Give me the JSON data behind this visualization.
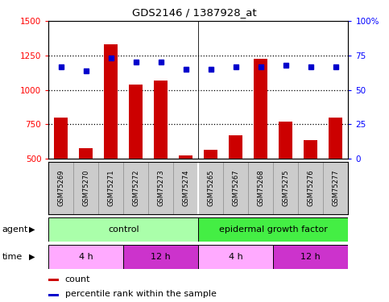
{
  "title": "GDS2146 / 1387928_at",
  "samples": [
    "GSM75269",
    "GSM75270",
    "GSM75271",
    "GSM75272",
    "GSM75273",
    "GSM75274",
    "GSM75265",
    "GSM75267",
    "GSM75268",
    "GSM75275",
    "GSM75276",
    "GSM75277"
  ],
  "counts": [
    800,
    575,
    1330,
    1040,
    1065,
    520,
    565,
    670,
    1225,
    770,
    635,
    800
  ],
  "percentiles": [
    67,
    64,
    73,
    70,
    70,
    65,
    65,
    67,
    67,
    68,
    67,
    67
  ],
  "ylim_left": [
    500,
    1500
  ],
  "ylim_right": [
    0,
    100
  ],
  "yticks_left": [
    500,
    750,
    1000,
    1250,
    1500
  ],
  "yticks_right": [
    0,
    25,
    50,
    75,
    100
  ],
  "bar_color": "#cc0000",
  "dot_color": "#0000cc",
  "groups": [
    {
      "label": "control",
      "start": 0,
      "end": 6,
      "color": "#aaffaa"
    },
    {
      "label": "epidermal growth factor",
      "start": 6,
      "end": 12,
      "color": "#44ee44"
    }
  ],
  "time_groups": [
    {
      "label": "4 h",
      "start": 0,
      "end": 3,
      "color": "#ffaaff"
    },
    {
      "label": "12 h",
      "start": 3,
      "end": 6,
      "color": "#cc33cc"
    },
    {
      "label": "4 h",
      "start": 6,
      "end": 9,
      "color": "#ffaaff"
    },
    {
      "label": "12 h",
      "start": 9,
      "end": 12,
      "color": "#cc33cc"
    }
  ],
  "legend_count_color": "#cc0000",
  "legend_pct_color": "#0000cc",
  "background_color": "#ffffff",
  "bar_bottom": 500,
  "sample_bg_color": "#cccccc",
  "grid_dotted_vals": [
    750,
    1000,
    1250
  ]
}
